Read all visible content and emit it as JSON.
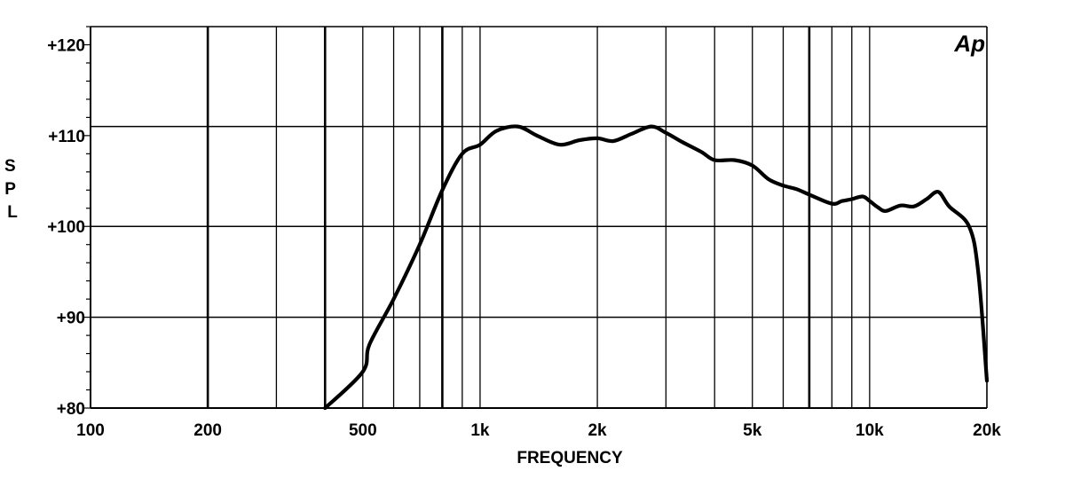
{
  "chart_data": {
    "type": "line",
    "xscale": "log",
    "xlim": [
      100,
      20000
    ],
    "ylim": [
      80,
      122
    ],
    "xlabel": "FREQUENCY",
    "ylabel": "S P L",
    "brand": "Ap",
    "grid": true,
    "x_tick_labels": [
      {
        "value": 100,
        "label": "100"
      },
      {
        "value": 200,
        "label": "200"
      },
      {
        "value": 500,
        "label": "500"
      },
      {
        "value": 1000,
        "label": "1k"
      },
      {
        "value": 2000,
        "label": "2k"
      },
      {
        "value": 5000,
        "label": "5k"
      },
      {
        "value": 10000,
        "label": "10k"
      },
      {
        "value": 20000,
        "label": "20k"
      }
    ],
    "y_tick_labels": [
      {
        "value": 80,
        "label": "+80"
      },
      {
        "value": 90,
        "label": "+90"
      },
      {
        "value": 100,
        "label": "+100"
      },
      {
        "value": 110,
        "label": "+110"
      },
      {
        "value": 120,
        "label": "+120"
      }
    ],
    "x_gridlines": [
      200,
      300,
      400,
      500,
      600,
      700,
      800,
      900,
      1000,
      2000,
      3000,
      4000,
      5000,
      6000,
      7000,
      8000,
      9000,
      10000
    ],
    "x_gridlines_bold": [
      200,
      400,
      800,
      7000
    ],
    "y_gridlines": [
      90,
      100,
      111
    ],
    "series": [
      {
        "x": [
          400,
          500,
          520,
          600,
          700,
          800,
          900,
          1000,
          1100,
          1250,
          1400,
          1600,
          1800,
          2000,
          2200,
          2450,
          2750,
          3000,
          3300,
          3700,
          4000,
          4500,
          5000,
          5500,
          6000,
          6500,
          7000,
          8000,
          8500,
          9000,
          9600,
          10000,
          10500,
          11000,
          12000,
          13000,
          14000,
          15000,
          16000,
          18000,
          19000,
          20000
        ],
        "y": [
          80,
          84,
          87,
          92,
          98,
          104,
          108,
          109,
          110.5,
          111,
          110,
          109,
          109.5,
          109.7,
          109.4,
          110.2,
          111,
          110.3,
          109.3,
          108.2,
          107.3,
          107.3,
          106.7,
          105.2,
          104.5,
          104.1,
          103.5,
          102.5,
          102.8,
          103,
          103.3,
          102.8,
          102.1,
          101.7,
          102.3,
          102.2,
          103,
          103.8,
          102.2,
          100,
          95,
          83
        ]
      }
    ]
  }
}
